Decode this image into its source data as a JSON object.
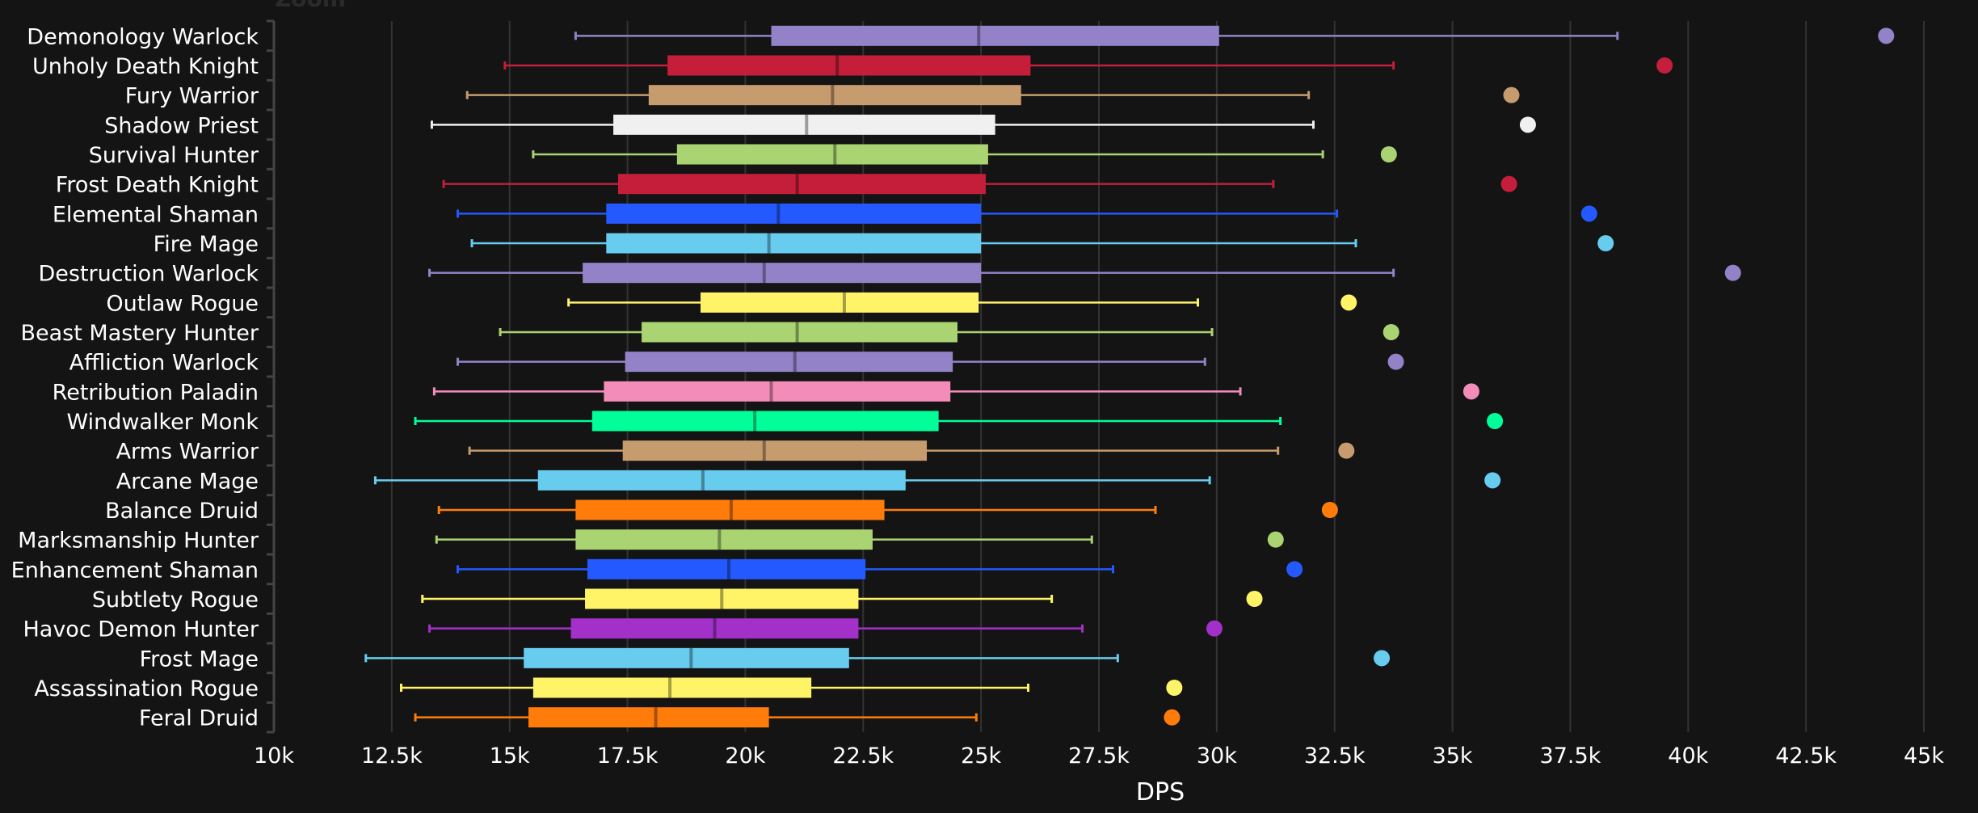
{
  "header": {
    "zoom_label": "Zoom"
  },
  "chart_data": {
    "type": "boxplot",
    "orientation": "horizontal",
    "xlabel": "DPS",
    "ylabel": "",
    "xlim": [
      10000,
      45000
    ],
    "xticks": [
      10000,
      12500,
      15000,
      17500,
      20000,
      22500,
      25000,
      27500,
      30000,
      32500,
      35000,
      37500,
      40000,
      42500,
      45000
    ],
    "xtick_labels": [
      "10k",
      "12.5k",
      "15k",
      "17.5k",
      "20k",
      "22.5k",
      "25k",
      "27.5k",
      "30k",
      "32.5k",
      "35k",
      "37.5k",
      "40k",
      "42.5k",
      "45k"
    ],
    "grid": true,
    "legend": "none",
    "series": [
      {
        "name": "Demonology Warlock",
        "color": "#9482c9",
        "low": 16400,
        "q1": 20550,
        "median": 24950,
        "q3": 30050,
        "high": 38500,
        "outlier": 44200
      },
      {
        "name": "Unholy Death Knight",
        "color": "#c41e3a",
        "low": 14900,
        "q1": 18350,
        "median": 21950,
        "q3": 26050,
        "high": 33750,
        "outlier": 39500
      },
      {
        "name": "Fury Warrior",
        "color": "#c69b6d",
        "low": 14100,
        "q1": 17950,
        "median": 21850,
        "q3": 25850,
        "high": 31950,
        "outlier": 36250
      },
      {
        "name": "Shadow Priest",
        "color": "#f0f0f0",
        "low": 13350,
        "q1": 17200,
        "median": 21300,
        "q3": 25300,
        "high": 32050,
        "outlier": 36600
      },
      {
        "name": "Survival Hunter",
        "color": "#aad372",
        "low": 15500,
        "q1": 18550,
        "median": 21900,
        "q3": 25150,
        "high": 32250,
        "outlier": 33650
      },
      {
        "name": "Frost Death Knight",
        "color": "#c41e3a",
        "low": 13600,
        "q1": 17300,
        "median": 21100,
        "q3": 25100,
        "high": 31200,
        "outlier": 36200
      },
      {
        "name": "Elemental Shaman",
        "color": "#2359ff",
        "low": 13900,
        "q1": 17050,
        "median": 20700,
        "q3": 25000,
        "high": 32550,
        "outlier": 37900
      },
      {
        "name": "Fire Mage",
        "color": "#68ccef",
        "low": 14200,
        "q1": 17050,
        "median": 20500,
        "q3": 25000,
        "high": 32950,
        "outlier": 38250
      },
      {
        "name": "Destruction Warlock",
        "color": "#9482c9",
        "low": 13300,
        "q1": 16550,
        "median": 20400,
        "q3": 25000,
        "high": 33750,
        "outlier": 40950
      },
      {
        "name": "Outlaw Rogue",
        "color": "#fff468",
        "low": 16250,
        "q1": 19050,
        "median": 22100,
        "q3": 24950,
        "high": 29600,
        "outlier": 32800
      },
      {
        "name": "Beast Mastery Hunter",
        "color": "#aad372",
        "low": 14800,
        "q1": 17800,
        "median": 21100,
        "q3": 24500,
        "high": 29900,
        "outlier": 33700
      },
      {
        "name": "Affliction Warlock",
        "color": "#9482c9",
        "low": 13900,
        "q1": 17450,
        "median": 21050,
        "q3": 24400,
        "high": 29750,
        "outlier": 33800
      },
      {
        "name": "Retribution Paladin",
        "color": "#f48cba",
        "low": 13400,
        "q1": 17000,
        "median": 20550,
        "q3": 24350,
        "high": 30500,
        "outlier": 35400
      },
      {
        "name": "Windwalker Monk",
        "color": "#00ff98",
        "low": 13000,
        "q1": 16750,
        "median": 20200,
        "q3": 24100,
        "high": 31350,
        "outlier": 35900
      },
      {
        "name": "Arms Warrior",
        "color": "#c69b6d",
        "low": 14150,
        "q1": 17400,
        "median": 20400,
        "q3": 23850,
        "high": 31300,
        "outlier": 32750
      },
      {
        "name": "Arcane Mage",
        "color": "#68ccef",
        "low": 12150,
        "q1": 15600,
        "median": 19100,
        "q3": 23400,
        "high": 29850,
        "outlier": 35850
      },
      {
        "name": "Balance Druid",
        "color": "#ff7c0a",
        "low": 13500,
        "q1": 16400,
        "median": 19700,
        "q3": 22950,
        "high": 28700,
        "outlier": 32400
      },
      {
        "name": "Marksmanship Hunter",
        "color": "#aad372",
        "low": 13450,
        "q1": 16400,
        "median": 19450,
        "q3": 22700,
        "high": 27350,
        "outlier": 31250
      },
      {
        "name": "Enhancement Shaman",
        "color": "#2359ff",
        "low": 13900,
        "q1": 16650,
        "median": 19650,
        "q3": 22550,
        "high": 27800,
        "outlier": 31650
      },
      {
        "name": "Subtlety Rogue",
        "color": "#fff468",
        "low": 13150,
        "q1": 16600,
        "median": 19500,
        "q3": 22400,
        "high": 26500,
        "outlier": 30800
      },
      {
        "name": "Havoc Demon Hunter",
        "color": "#a330c9",
        "low": 13300,
        "q1": 16300,
        "median": 19350,
        "q3": 22400,
        "high": 27150,
        "outlier": 29950
      },
      {
        "name": "Frost Mage",
        "color": "#68ccef",
        "low": 11950,
        "q1": 15300,
        "median": 18850,
        "q3": 22200,
        "high": 27900,
        "outlier": 33500
      },
      {
        "name": "Assassination Rogue",
        "color": "#fff468",
        "low": 12700,
        "q1": 15500,
        "median": 18400,
        "q3": 21400,
        "high": 26000,
        "outlier": 29100
      },
      {
        "name": "Feral Druid",
        "color": "#ff7c0a",
        "low": 13000,
        "q1": 15400,
        "median": 18100,
        "q3": 20500,
        "high": 24900,
        "outlier": 29050
      }
    ]
  }
}
